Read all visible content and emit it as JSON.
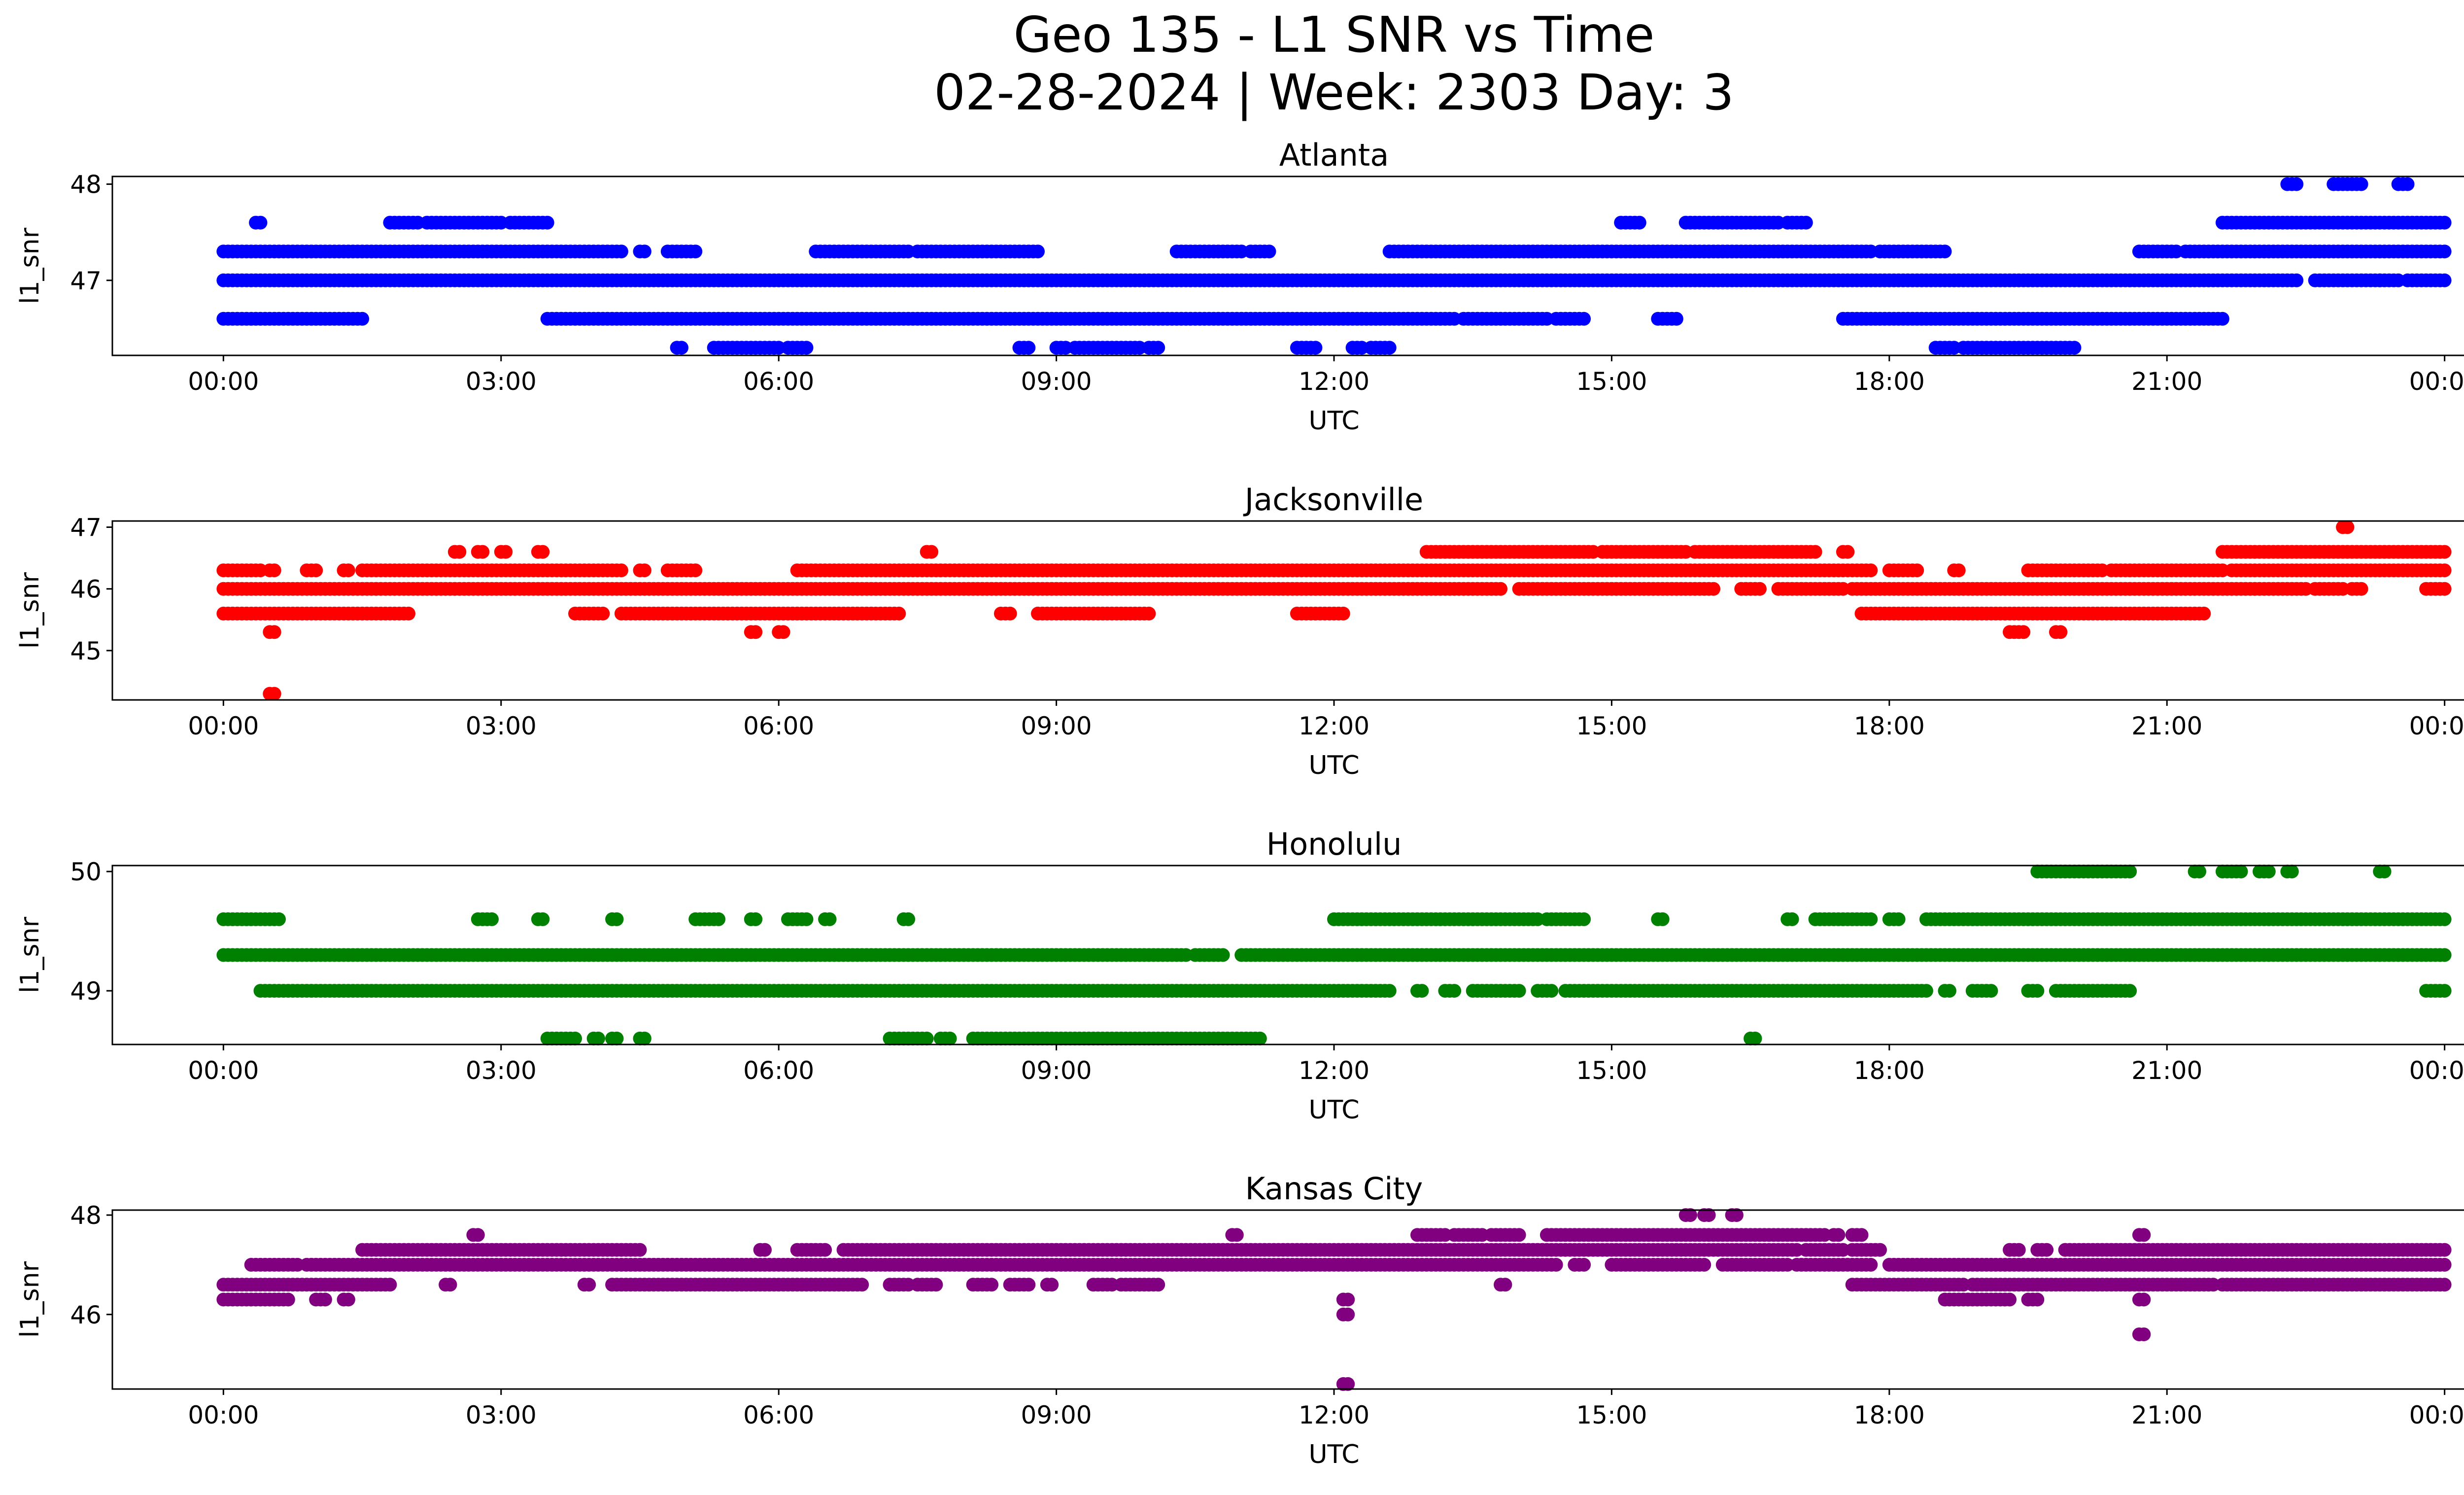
{
  "figure": {
    "title_line1": "Geo 135 - L1 SNR vs Time",
    "title_line2": "02-28-2024 | Week: 2303 Day: 3"
  },
  "chart_data": [
    {
      "type": "scatter",
      "title": "Atlanta",
      "xlabel": "UTC",
      "ylabel": "l1_snr",
      "color": "#0000ff",
      "xlim": [
        "00:00",
        "24:00"
      ],
      "ylim": [
        46.22,
        48.08
      ],
      "x_ticks": [
        "00:00",
        "03:00",
        "06:00",
        "09:00",
        "12:00",
        "15:00",
        "18:00",
        "21:00",
        "00:00"
      ],
      "y_ticks": [
        {
          "value": 47,
          "label": "47"
        },
        {
          "value": 48,
          "label": "48"
        }
      ],
      "series": [
        {
          "y": 48.0,
          "ranges": [
            [
              22.3,
              22.4
            ],
            [
              22.8,
              23.1
            ],
            [
              23.5,
              23.6
            ]
          ]
        },
        {
          "y": 47.6,
          "ranges": [
            [
              0.35,
              0.4
            ],
            [
              1.8,
              2.1
            ],
            [
              2.2,
              3.0
            ],
            [
              3.1,
              3.5
            ],
            [
              15.1,
              15.3
            ],
            [
              15.8,
              16.8
            ],
            [
              16.9,
              17.1
            ],
            [
              21.6,
              24.0
            ]
          ]
        },
        {
          "y": 47.3,
          "ranges": [
            [
              0.0,
              4.3
            ],
            [
              4.5,
              4.55
            ],
            [
              4.8,
              5.1
            ],
            [
              6.4,
              7.4
            ],
            [
              7.5,
              8.8
            ],
            [
              10.3,
              11.0
            ],
            [
              11.1,
              11.3
            ],
            [
              12.6,
              17.8
            ],
            [
              17.9,
              18.6
            ],
            [
              20.7,
              21.1
            ],
            [
              21.2,
              24.0
            ]
          ]
        },
        {
          "y": 47.0,
          "ranges": [
            [
              0.0,
              22.4
            ],
            [
              22.6,
              23.3
            ],
            [
              23.3,
              23.5
            ],
            [
              23.6,
              24.0
            ]
          ]
        },
        {
          "y": 46.6,
          "ranges": [
            [
              0.0,
              1.5
            ],
            [
              3.5,
              13.3
            ],
            [
              13.4,
              14.3
            ],
            [
              14.4,
              14.7
            ],
            [
              15.5,
              15.7
            ],
            [
              17.5,
              21.6
            ]
          ]
        },
        {
          "y": 46.3,
          "ranges": [
            [
              4.9,
              4.95
            ],
            [
              5.3,
              6.0
            ],
            [
              6.1,
              6.3
            ],
            [
              8.6,
              8.7
            ],
            [
              9.0,
              9.1
            ],
            [
              9.2,
              9.9
            ],
            [
              10.0,
              10.1
            ],
            [
              11.6,
              11.8
            ],
            [
              12.2,
              12.3
            ],
            [
              12.4,
              12.6
            ],
            [
              18.5,
              18.7
            ],
            [
              18.8,
              20.0
            ]
          ]
        }
      ]
    },
    {
      "type": "scatter",
      "title": "Jacksonville",
      "xlabel": "UTC",
      "ylabel": "l1_snr",
      "color": "#ff0000",
      "xlim": [
        "00:00",
        "24:00"
      ],
      "ylim": [
        44.2,
        47.1
      ],
      "x_ticks": [
        "00:00",
        "03:00",
        "06:00",
        "09:00",
        "12:00",
        "15:00",
        "18:00",
        "21:00",
        "00:00"
      ],
      "y_ticks": [
        {
          "value": 45,
          "label": "45"
        },
        {
          "value": 46,
          "label": "46"
        },
        {
          "value": 47,
          "label": "47"
        }
      ],
      "series": [
        {
          "y": 47.0,
          "ranges": [
            [
              22.9,
              22.95
            ]
          ]
        },
        {
          "y": 46.6,
          "ranges": [
            [
              2.5,
              2.55
            ],
            [
              2.75,
              2.8
            ],
            [
              3.0,
              3.05
            ],
            [
              3.4,
              3.45
            ],
            [
              7.6,
              7.65
            ],
            [
              13.0,
              14.8
            ],
            [
              14.9,
              15.8
            ],
            [
              15.9,
              17.2
            ],
            [
              17.5,
              17.55
            ],
            [
              21.6,
              24.0
            ]
          ]
        },
        {
          "y": 46.3,
          "ranges": [
            [
              0.0,
              0.4
            ],
            [
              0.5,
              0.55
            ],
            [
              0.9,
              1.0
            ],
            [
              1.3,
              1.35
            ],
            [
              1.5,
              4.3
            ],
            [
              4.5,
              4.55
            ],
            [
              4.8,
              5.1
            ],
            [
              6.2,
              17.8
            ],
            [
              18.0,
              18.3
            ],
            [
              18.7,
              18.75
            ],
            [
              19.5,
              20.3
            ],
            [
              20.4,
              21.6
            ],
            [
              21.7,
              24.0
            ]
          ]
        },
        {
          "y": 46.0,
          "ranges": [
            [
              0.0,
              13.8
            ],
            [
              14.0,
              16.1
            ],
            [
              16.4,
              16.6
            ],
            [
              16.8,
              17.5
            ],
            [
              17.6,
              22.5
            ],
            [
              22.6,
              22.9
            ],
            [
              23.0,
              23.1
            ],
            [
              23.8,
              24.0
            ]
          ]
        },
        {
          "y": 45.6,
          "ranges": [
            [
              0.0,
              2.0
            ],
            [
              3.8,
              4.1
            ],
            [
              4.3,
              7.3
            ],
            [
              8.4,
              8.5
            ],
            [
              8.8,
              10.0
            ],
            [
              11.6,
              12.1
            ],
            [
              17.7,
              21.4
            ]
          ]
        },
        {
          "y": 45.3,
          "ranges": [
            [
              0.5,
              0.55
            ],
            [
              5.7,
              5.75
            ],
            [
              6.0,
              6.05
            ],
            [
              19.3,
              19.45
            ],
            [
              19.8,
              19.85
            ]
          ]
        },
        {
          "y": 44.3,
          "ranges": [
            [
              0.5,
              0.55
            ]
          ]
        }
      ]
    },
    {
      "type": "scatter",
      "title": "Honolulu",
      "xlabel": "UTC",
      "ylabel": "l1_snr",
      "color": "#008000",
      "xlim": [
        "00:00",
        "24:00"
      ],
      "ylim": [
        48.55,
        50.05
      ],
      "x_ticks": [
        "00:00",
        "03:00",
        "06:00",
        "09:00",
        "12:00",
        "15:00",
        "18:00",
        "21:00",
        "00:00"
      ],
      "y_ticks": [
        {
          "value": 49,
          "label": "49"
        },
        {
          "value": 50,
          "label": "50"
        }
      ],
      "series": [
        {
          "y": 50.0,
          "ranges": [
            [
              19.6,
              20.6
            ],
            [
              21.3,
              21.35
            ],
            [
              21.6,
              21.8
            ],
            [
              22.0,
              22.1
            ],
            [
              22.3,
              22.35
            ],
            [
              23.3,
              23.35
            ]
          ]
        },
        {
          "y": 49.6,
          "ranges": [
            [
              0.0,
              0.6
            ],
            [
              2.75,
              2.9
            ],
            [
              3.4,
              3.45
            ],
            [
              4.2,
              4.25
            ],
            [
              5.1,
              5.35
            ],
            [
              5.7,
              5.75
            ],
            [
              6.1,
              6.3
            ],
            [
              6.5,
              6.55
            ],
            [
              7.35,
              7.4
            ],
            [
              12.0,
              14.2
            ],
            [
              14.3,
              14.7
            ],
            [
              15.5,
              15.55
            ],
            [
              16.9,
              16.95
            ],
            [
              17.2,
              17.8
            ],
            [
              18.0,
              18.1
            ],
            [
              18.4,
              24.0
            ]
          ]
        },
        {
          "y": 49.3,
          "ranges": [
            [
              0.0,
              10.4
            ],
            [
              10.5,
              10.8
            ],
            [
              11.0,
              24.0
            ]
          ]
        },
        {
          "y": 49.0,
          "ranges": [
            [
              0.4,
              0.45
            ],
            [
              0.5,
              12.6
            ],
            [
              12.9,
              12.95
            ],
            [
              13.2,
              13.3
            ],
            [
              13.5,
              14.0
            ],
            [
              14.2,
              14.35
            ],
            [
              14.5,
              18.4
            ],
            [
              18.6,
              18.65
            ],
            [
              18.9,
              19.1
            ],
            [
              19.5,
              19.6
            ],
            [
              19.8,
              20.6
            ],
            [
              23.8,
              24.0
            ]
          ]
        },
        {
          "y": 48.6,
          "ranges": [
            [
              3.5,
              3.8
            ],
            [
              4.0,
              4.05
            ],
            [
              4.2,
              4.25
            ],
            [
              4.5,
              4.55
            ],
            [
              7.2,
              7.6
            ],
            [
              7.75,
              7.85
            ],
            [
              8.1,
              11.2
            ],
            [
              16.5,
              16.55
            ]
          ]
        }
      ]
    },
    {
      "type": "scatter",
      "title": "Kansas City",
      "xlabel": "UTC",
      "ylabel": "l1_snr",
      "color": "#800080",
      "xlim": [
        "00:00",
        "24:00"
      ],
      "ylim": [
        44.5,
        48.1
      ],
      "x_ticks": [
        "00:00",
        "03:00",
        "06:00",
        "09:00",
        "12:00",
        "15:00",
        "18:00",
        "21:00",
        "00:00"
      ],
      "y_ticks": [
        {
          "value": 46,
          "label": "46"
        },
        {
          "value": 48,
          "label": "48"
        }
      ],
      "series": [
        {
          "y": 48.0,
          "ranges": [
            [
              15.8,
              15.85
            ],
            [
              16.0,
              16.05
            ],
            [
              16.3,
              16.35
            ]
          ]
        },
        {
          "y": 47.6,
          "ranges": [
            [
              2.7,
              2.75
            ],
            [
              10.9,
              10.95
            ],
            [
              12.9,
              13.2
            ],
            [
              13.3,
              13.6
            ],
            [
              13.7,
              14.0
            ],
            [
              14.3,
              17.3
            ],
            [
              17.4,
              17.45
            ],
            [
              17.6,
              17.7
            ],
            [
              20.7,
              20.75
            ]
          ]
        },
        {
          "y": 47.3,
          "ranges": [
            [
              1.5,
              4.5
            ],
            [
              5.8,
              5.85
            ],
            [
              6.2,
              6.5
            ],
            [
              6.7,
              17.0
            ],
            [
              17.1,
              17.5
            ],
            [
              17.6,
              17.9
            ],
            [
              19.3,
              19.4
            ],
            [
              19.6,
              19.7
            ],
            [
              19.9,
              24.0
            ]
          ]
        },
        {
          "y": 47.0,
          "ranges": [
            [
              0.3,
              0.8
            ],
            [
              0.9,
              14.4
            ],
            [
              14.6,
              14.7
            ],
            [
              15.0,
              16.0
            ],
            [
              16.2,
              16.9
            ],
            [
              17.0,
              17.8
            ],
            [
              18.0,
              24.0
            ]
          ]
        },
        {
          "y": 46.6,
          "ranges": [
            [
              0.0,
              1.8
            ],
            [
              2.4,
              2.45
            ],
            [
              3.9,
              3.95
            ],
            [
              4.2,
              6.9
            ],
            [
              7.2,
              7.4
            ],
            [
              7.5,
              7.7
            ],
            [
              8.1,
              8.3
            ],
            [
              8.5,
              8.7
            ],
            [
              8.9,
              8.95
            ],
            [
              9.4,
              9.6
            ],
            [
              9.7,
              10.1
            ],
            [
              13.8,
              13.85
            ],
            [
              17.6,
              18.8
            ],
            [
              18.9,
              21.5
            ],
            [
              21.6,
              24.0
            ]
          ]
        },
        {
          "y": 46.3,
          "ranges": [
            [
              0.0,
              0.7
            ],
            [
              1.0,
              1.1
            ],
            [
              1.3,
              1.35
            ],
            [
              12.1,
              12.15
            ],
            [
              18.6,
              19.3
            ],
            [
              19.5,
              19.6
            ],
            [
              20.7,
              20.75
            ]
          ]
        },
        {
          "y": 46.0,
          "ranges": [
            [
              12.1,
              12.15
            ]
          ]
        },
        {
          "y": 45.6,
          "ranges": [
            [
              20.7,
              20.75
            ]
          ]
        },
        {
          "y": 44.6,
          "ranges": [
            [
              12.1,
              12.15
            ]
          ]
        }
      ]
    }
  ]
}
